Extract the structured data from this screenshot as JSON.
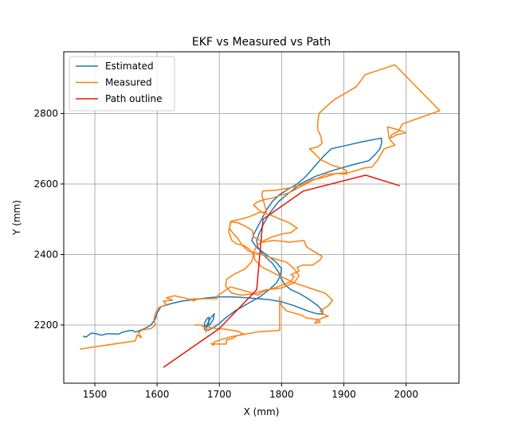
{
  "chart_data": {
    "type": "line",
    "title": "EKF vs Measured vs Path",
    "xlabel": "X (mm)",
    "ylabel": "Y (mm)",
    "xlim": [
      1450,
      2085
    ],
    "ylim": [
      2035,
      2975
    ],
    "xticks": [
      1500,
      1600,
      1700,
      1800,
      1900,
      2000
    ],
    "yticks": [
      2200,
      2400,
      2600,
      2800
    ],
    "grid": true,
    "legend_position": "top-left",
    "series": [
      {
        "name": "Estimated",
        "color": "#1f77b4",
        "points": [
          [
            1481,
            2168
          ],
          [
            1486,
            2166
          ],
          [
            1494,
            2177
          ],
          [
            1501,
            2176
          ],
          [
            1511,
            2171
          ],
          [
            1519,
            2175
          ],
          [
            1530,
            2175
          ],
          [
            1538,
            2174
          ],
          [
            1545,
            2180
          ],
          [
            1553,
            2183
          ],
          [
            1560,
            2185
          ],
          [
            1565,
            2180
          ],
          [
            1570,
            2183
          ],
          [
            1580,
            2190
          ],
          [
            1590,
            2200
          ],
          [
            1597,
            2217
          ],
          [
            1600,
            2234
          ],
          [
            1606,
            2252
          ],
          [
            1623,
            2261
          ],
          [
            1640,
            2268
          ],
          [
            1660,
            2272
          ],
          [
            1680,
            2277
          ],
          [
            1700,
            2280
          ],
          [
            1720,
            2280
          ],
          [
            1740,
            2278
          ],
          [
            1760,
            2275
          ],
          [
            1780,
            2272
          ],
          [
            1800,
            2266
          ],
          [
            1818,
            2256
          ],
          [
            1833,
            2246
          ],
          [
            1845,
            2238
          ],
          [
            1857,
            2232
          ],
          [
            1866,
            2231
          ],
          [
            1866,
            2240
          ],
          [
            1858,
            2255
          ],
          [
            1845,
            2272
          ],
          [
            1830,
            2288
          ],
          [
            1815,
            2300
          ],
          [
            1805,
            2315
          ],
          [
            1800,
            2330
          ],
          [
            1795,
            2350
          ],
          [
            1785,
            2375
          ],
          [
            1770,
            2400
          ],
          [
            1762,
            2420
          ],
          [
            1760,
            2440
          ],
          [
            1764,
            2460
          ],
          [
            1772,
            2490
          ],
          [
            1782,
            2520
          ],
          [
            1795,
            2550
          ],
          [
            1810,
            2572
          ],
          [
            1830,
            2600
          ],
          [
            1855,
            2622
          ],
          [
            1885,
            2640
          ],
          [
            1915,
            2655
          ],
          [
            1940,
            2666
          ],
          [
            1950,
            2683
          ],
          [
            1958,
            2700
          ],
          [
            1961,
            2718
          ],
          [
            1960,
            2730
          ],
          [
            1948,
            2726
          ],
          [
            1930,
            2720
          ],
          [
            1905,
            2710
          ],
          [
            1880,
            2700
          ],
          [
            1868,
            2680
          ],
          [
            1858,
            2660
          ],
          [
            1848,
            2640
          ],
          [
            1838,
            2620
          ],
          [
            1825,
            2600
          ],
          [
            1810,
            2585
          ],
          [
            1797,
            2570
          ],
          [
            1785,
            2550
          ],
          [
            1775,
            2525
          ],
          [
            1768,
            2500
          ],
          [
            1762,
            2480
          ],
          [
            1756,
            2460
          ],
          [
            1752,
            2440
          ],
          [
            1760,
            2420
          ],
          [
            1775,
            2400
          ],
          [
            1790,
            2380
          ],
          [
            1800,
            2360
          ],
          [
            1798,
            2340
          ],
          [
            1792,
            2320
          ],
          [
            1780,
            2300
          ],
          [
            1765,
            2280
          ],
          [
            1745,
            2260
          ],
          [
            1725,
            2240
          ],
          [
            1710,
            2220
          ],
          [
            1700,
            2205
          ],
          [
            1690,
            2192
          ],
          [
            1682,
            2185
          ],
          [
            1676,
            2188
          ],
          [
            1676,
            2205
          ],
          [
            1680,
            2218
          ],
          [
            1683,
            2222
          ],
          [
            1683,
            2205
          ],
          [
            1678,
            2192
          ],
          [
            1685,
            2202
          ],
          [
            1690,
            2215
          ],
          [
            1692,
            2232
          ],
          [
            1686,
            2220
          ],
          [
            1680,
            2200
          ],
          [
            1675,
            2195
          ]
        ]
      },
      {
        "name": "Measured",
        "color": "#ff7f0e",
        "points": [
          [
            1476,
            2132
          ],
          [
            1565,
            2155
          ],
          [
            1568,
            2172
          ],
          [
            1575,
            2164
          ],
          [
            1570,
            2178
          ],
          [
            1576,
            2186
          ],
          [
            1590,
            2190
          ],
          [
            1597,
            2200
          ],
          [
            1595,
            2218
          ],
          [
            1598,
            2236
          ],
          [
            1603,
            2250
          ],
          [
            1615,
            2258
          ],
          [
            1610,
            2268
          ],
          [
            1625,
            2270
          ],
          [
            1615,
            2277
          ],
          [
            1628,
            2283
          ],
          [
            1648,
            2275
          ],
          [
            1660,
            2268
          ],
          [
            1655,
            2274
          ],
          [
            1696,
            2275
          ],
          [
            1697,
            2283
          ],
          [
            1718,
            2308
          ],
          [
            1745,
            2295
          ],
          [
            1762,
            2285
          ],
          [
            1770,
            2295
          ],
          [
            1790,
            2306
          ],
          [
            1815,
            2323
          ],
          [
            1820,
            2338
          ],
          [
            1815,
            2343
          ],
          [
            1828,
            2353
          ],
          [
            1825,
            2364
          ],
          [
            1834,
            2370
          ],
          [
            1850,
            2370
          ],
          [
            1862,
            2385
          ],
          [
            1865,
            2395
          ],
          [
            1848,
            2413
          ],
          [
            1840,
            2422
          ],
          [
            1836,
            2440
          ],
          [
            1813,
            2435
          ],
          [
            1788,
            2440
          ],
          [
            1770,
            2435
          ],
          [
            1755,
            2450
          ],
          [
            1753,
            2468
          ],
          [
            1742,
            2480
          ],
          [
            1730,
            2490
          ],
          [
            1718,
            2493
          ],
          [
            1716,
            2474
          ],
          [
            1722,
            2460
          ],
          [
            1730,
            2445
          ],
          [
            1736,
            2428
          ],
          [
            1746,
            2410
          ],
          [
            1768,
            2400
          ],
          [
            1785,
            2390
          ],
          [
            1808,
            2378
          ],
          [
            1820,
            2360
          ],
          [
            1828,
            2340
          ],
          [
            1820,
            2320
          ],
          [
            1800,
            2305
          ],
          [
            1775,
            2300
          ],
          [
            1755,
            2288
          ],
          [
            1735,
            2285
          ],
          [
            1720,
            2290
          ],
          [
            1710,
            2310
          ],
          [
            1712,
            2330
          ],
          [
            1725,
            2345
          ],
          [
            1742,
            2360
          ],
          [
            1752,
            2380
          ],
          [
            1755,
            2400
          ],
          [
            1748,
            2415
          ],
          [
            1740,
            2425
          ],
          [
            1728,
            2430
          ],
          [
            1720,
            2440
          ],
          [
            1715,
            2465
          ],
          [
            1718,
            2488
          ],
          [
            1720,
            2495
          ],
          [
            1734,
            2500
          ],
          [
            1748,
            2507
          ],
          [
            1765,
            2520
          ],
          [
            1776,
            2520
          ],
          [
            1772,
            2545
          ],
          [
            1768,
            2570
          ],
          [
            1770,
            2580
          ],
          [
            1790,
            2582
          ],
          [
            1810,
            2588
          ],
          [
            1832,
            2597
          ],
          [
            1850,
            2612
          ],
          [
            1870,
            2620
          ],
          [
            1888,
            2630
          ],
          [
            1905,
            2628
          ],
          [
            1904,
            2638
          ],
          [
            1896,
            2645
          ],
          [
            1880,
            2654
          ],
          [
            1862,
            2670
          ],
          [
            1852,
            2688
          ],
          [
            1845,
            2700
          ],
          [
            1858,
            2705
          ],
          [
            1865,
            2715
          ],
          [
            1863,
            2735
          ],
          [
            1858,
            2755
          ],
          [
            1858,
            2775
          ],
          [
            1860,
            2800
          ],
          [
            1872,
            2820
          ],
          [
            1885,
            2840
          ],
          [
            1903,
            2858
          ],
          [
            1920,
            2876
          ],
          [
            1926,
            2890
          ],
          [
            1934,
            2910
          ],
          [
            1982,
            2938
          ],
          [
            2054,
            2808
          ],
          [
            1994,
            2770
          ],
          [
            1988,
            2750
          ],
          [
            1977,
            2740
          ],
          [
            1975,
            2730
          ],
          [
            1985,
            2740
          ],
          [
            2000,
            2745
          ],
          [
            1985,
            2755
          ],
          [
            1970,
            2762
          ],
          [
            1973,
            2728
          ],
          [
            1982,
            2710
          ],
          [
            1965,
            2700
          ],
          [
            1958,
            2680
          ],
          [
            1954,
            2667
          ],
          [
            1945,
            2648
          ],
          [
            1932,
            2645
          ],
          [
            1920,
            2638
          ],
          [
            1907,
            2632
          ],
          [
            1890,
            2630
          ],
          [
            1872,
            2627
          ],
          [
            1850,
            2610
          ],
          [
            1830,
            2592
          ],
          [
            1812,
            2575
          ],
          [
            1798,
            2568
          ],
          [
            1785,
            2560
          ],
          [
            1770,
            2555
          ],
          [
            1760,
            2548
          ],
          [
            1755,
            2540
          ],
          [
            1768,
            2520
          ],
          [
            1785,
            2510
          ],
          [
            1798,
            2500
          ],
          [
            1812,
            2490
          ],
          [
            1825,
            2475
          ],
          [
            1815,
            2462
          ],
          [
            1800,
            2458
          ],
          [
            1785,
            2450
          ],
          [
            1772,
            2440
          ],
          [
            1760,
            2425
          ],
          [
            1755,
            2405
          ],
          [
            1757,
            2385
          ],
          [
            1768,
            2365
          ],
          [
            1790,
            2345
          ],
          [
            1820,
            2320
          ],
          [
            1845,
            2305
          ],
          [
            1870,
            2290
          ],
          [
            1882,
            2270
          ],
          [
            1875,
            2255
          ],
          [
            1862,
            2240
          ],
          [
            1868,
            2230
          ],
          [
            1875,
            2225
          ],
          [
            1865,
            2220
          ],
          [
            1857,
            2212
          ],
          [
            1853,
            2205
          ],
          [
            1862,
            2208
          ],
          [
            1860,
            2215
          ],
          [
            1840,
            2220
          ],
          [
            1832,
            2228
          ],
          [
            1808,
            2240
          ],
          [
            1800,
            2255
          ],
          [
            1797,
            2265
          ],
          [
            1797,
            2280
          ],
          [
            1797,
            2230
          ],
          [
            1797,
            2185
          ],
          [
            1760,
            2180
          ],
          [
            1745,
            2175
          ],
          [
            1722,
            2168
          ],
          [
            1705,
            2160
          ],
          [
            1692,
            2152
          ],
          [
            1690,
            2142
          ],
          [
            1687,
            2148
          ],
          [
            1693,
            2146
          ],
          [
            1711,
            2146
          ],
          [
            1712,
            2158
          ],
          [
            1722,
            2162
          ],
          [
            1725,
            2167
          ],
          [
            1738,
            2175
          ],
          [
            1730,
            2182
          ],
          [
            1710,
            2188
          ],
          [
            1695,
            2190
          ],
          [
            1686,
            2193
          ],
          [
            1682,
            2195
          ],
          [
            1688,
            2192
          ],
          [
            1680,
            2185
          ],
          [
            1678,
            2180
          ],
          [
            1680,
            2190
          ],
          [
            1670,
            2200
          ],
          [
            1660,
            2200
          ]
        ]
      },
      {
        "name": "Path outline",
        "color": "#e8160c",
        "points": [
          [
            1610,
            2080
          ],
          [
            1700,
            2190
          ],
          [
            1760,
            2300
          ],
          [
            1770,
            2500
          ],
          [
            1835,
            2580
          ],
          [
            1935,
            2625
          ],
          [
            1990,
            2595
          ]
        ]
      }
    ]
  }
}
